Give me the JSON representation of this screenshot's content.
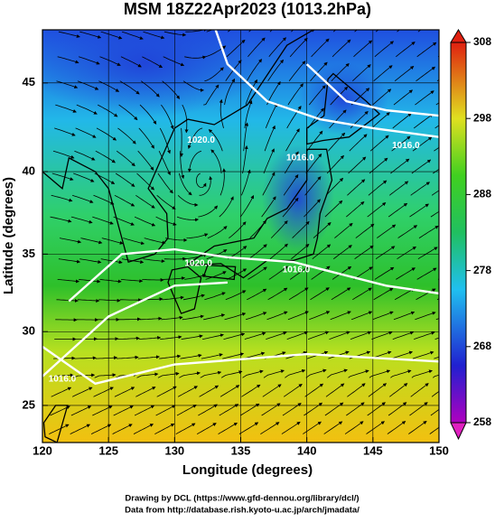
{
  "title": "MSM 18Z22Apr2023 (1013.2hPa)",
  "chart_data": {
    "type": "map",
    "xlabel": "Longitude (degrees)",
    "ylabel": "Latitude  (degrees)",
    "xlim": [
      120,
      150
    ],
    "ylim": [
      22.4,
      47.8
    ],
    "xticks": [
      120,
      125,
      130,
      135,
      140,
      145,
      150
    ],
    "yticks": [
      25,
      30,
      35,
      40,
      45
    ],
    "colorbar": {
      "lim": [
        258,
        308
      ],
      "ticks": [
        258,
        268,
        278,
        288,
        298,
        308
      ]
    },
    "contour_labels": [
      "1020.0",
      "1016.0",
      "1020.0",
      "1016.0",
      "1016.0",
      "1016.0"
    ]
  },
  "footer": [
    "Drawing by DCL (https://www.gfd-dennou.org/library/dcl/)",
    "Data from http://database.rish.kyoto-u.ac.jp/arch/jmadata/"
  ]
}
